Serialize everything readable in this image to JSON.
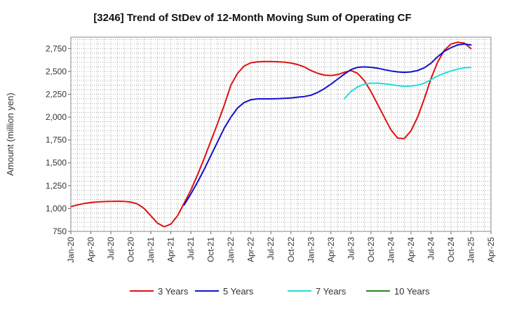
{
  "chart_data": {
    "type": "line",
    "title": "[3246]  Trend of StDev of 12-Month Moving Sum of Operating CF",
    "xlabel": "",
    "ylabel": "Amount (million yen)",
    "ylim": [
      750,
      2875
    ],
    "yticks": [
      750,
      1000,
      1250,
      1500,
      1750,
      2000,
      2250,
      2500,
      2750
    ],
    "ytick_labels": [
      "750",
      "1,000",
      "1,250",
      "1,500",
      "1,750",
      "2,000",
      "2,250",
      "2,500",
      "2,750"
    ],
    "xlim": [
      "2020-01",
      "2025-04"
    ],
    "xtick_labels": [
      "Jan-20",
      "Apr-20",
      "Jul-20",
      "Oct-20",
      "Jan-21",
      "Apr-21",
      "Jul-21",
      "Oct-21",
      "Jan-22",
      "Apr-22",
      "Jul-22",
      "Oct-22",
      "Jan-23",
      "Apr-23",
      "Jul-23",
      "Oct-23",
      "Jan-24",
      "Apr-24",
      "Jul-24",
      "Oct-24",
      "Jan-25",
      "Apr-25"
    ],
    "grid": true,
    "legend_position": "bottom",
    "series": [
      {
        "name": "3 Years",
        "color": "#dd1111",
        "x": [
          "2020-01",
          "2020-02",
          "2020-03",
          "2020-04",
          "2020-05",
          "2020-06",
          "2020-07",
          "2020-08",
          "2020-09",
          "2020-10",
          "2020-11",
          "2020-12",
          "2021-01",
          "2021-02",
          "2021-03",
          "2021-04",
          "2021-05",
          "2021-06",
          "2021-07",
          "2021-08",
          "2021-09",
          "2021-10",
          "2021-11",
          "2021-12",
          "2022-01",
          "2022-02",
          "2022-03",
          "2022-04",
          "2022-05",
          "2022-06",
          "2022-07",
          "2022-08",
          "2022-09",
          "2022-10",
          "2022-11",
          "2022-12",
          "2023-01",
          "2023-02",
          "2023-03",
          "2023-04",
          "2023-05",
          "2023-06",
          "2023-07",
          "2023-08",
          "2023-09",
          "2023-10",
          "2023-11",
          "2023-12",
          "2024-01",
          "2024-02",
          "2024-03",
          "2024-04",
          "2024-05",
          "2024-06",
          "2024-07",
          "2024-08",
          "2024-09",
          "2024-10",
          "2024-11",
          "2024-12",
          "2025-01"
        ],
        "values": [
          1020,
          1040,
          1055,
          1065,
          1072,
          1076,
          1078,
          1080,
          1078,
          1070,
          1050,
          1000,
          920,
          840,
          800,
          830,
          920,
          1060,
          1200,
          1370,
          1550,
          1740,
          1930,
          2130,
          2350,
          2480,
          2560,
          2595,
          2605,
          2608,
          2608,
          2606,
          2602,
          2592,
          2575,
          2550,
          2510,
          2480,
          2460,
          2455,
          2465,
          2490,
          2510,
          2480,
          2400,
          2280,
          2140,
          2000,
          1860,
          1770,
          1765,
          1850,
          2000,
          2200,
          2420,
          2600,
          2730,
          2800,
          2820,
          2810,
          2750
        ]
      },
      {
        "name": "5 Years",
        "color": "#1111cc",
        "x": [
          "2021-06",
          "2021-07",
          "2021-08",
          "2021-09",
          "2021-10",
          "2021-11",
          "2021-12",
          "2022-01",
          "2022-02",
          "2022-03",
          "2022-04",
          "2022-05",
          "2022-06",
          "2022-07",
          "2022-08",
          "2022-09",
          "2022-10",
          "2022-11",
          "2022-12",
          "2023-01",
          "2023-02",
          "2023-03",
          "2023-04",
          "2023-05",
          "2023-06",
          "2023-07",
          "2023-08",
          "2023-09",
          "2023-10",
          "2023-11",
          "2023-12",
          "2024-01",
          "2024-02",
          "2024-03",
          "2024-04",
          "2024-05",
          "2024-06",
          "2024-07",
          "2024-08",
          "2024-09",
          "2024-10",
          "2024-11",
          "2024-12",
          "2025-01"
        ],
        "values": [
          1040,
          1160,
          1290,
          1430,
          1580,
          1730,
          1880,
          2000,
          2100,
          2160,
          2190,
          2200,
          2200,
          2200,
          2202,
          2205,
          2210,
          2218,
          2225,
          2240,
          2270,
          2310,
          2360,
          2415,
          2470,
          2520,
          2545,
          2550,
          2545,
          2535,
          2520,
          2505,
          2495,
          2490,
          2495,
          2510,
          2540,
          2590,
          2660,
          2720,
          2760,
          2790,
          2800,
          2790
        ]
      },
      {
        "name": "7 Years",
        "color": "#22dddd",
        "x": [
          "2023-06",
          "2023-07",
          "2023-08",
          "2023-09",
          "2023-10",
          "2023-11",
          "2023-12",
          "2024-01",
          "2024-02",
          "2024-03",
          "2024-04",
          "2024-05",
          "2024-06",
          "2024-07",
          "2024-08",
          "2024-09",
          "2024-10",
          "2024-11",
          "2024-12",
          "2025-01"
        ],
        "values": [
          2200,
          2280,
          2330,
          2360,
          2372,
          2372,
          2365,
          2355,
          2345,
          2338,
          2340,
          2350,
          2370,
          2410,
          2450,
          2480,
          2505,
          2525,
          2540,
          2545
        ]
      },
      {
        "name": "10 Years",
        "color": "#228822",
        "x": [],
        "values": []
      }
    ]
  }
}
